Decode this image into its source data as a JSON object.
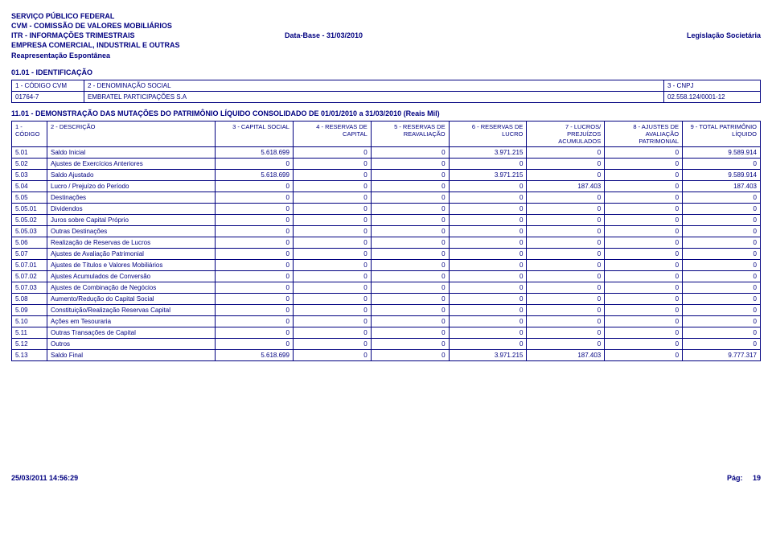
{
  "header": {
    "line1": "SERVIÇO PÚBLICO FEDERAL",
    "line2": "CVM - COMISSÃO DE VALORES MOBILIÁRIOS",
    "line3_left": "ITR - INFORMAÇÕES TRIMESTRAIS",
    "line3_mid": "Data-Base - 31/03/2010",
    "line3_right": "Legislação Societária",
    "line4": "EMPRESA COMERCIAL, INDUSTRIAL E OUTRAS",
    "line5": "Reapresentação Espontânea"
  },
  "section_ident_title": "01.01 - IDENTIFICAÇÃO",
  "ident": {
    "h1": "1 - CÓDIGO CVM",
    "h2": "2 - DENOMINAÇÃO SOCIAL",
    "h3": "3 - CNPJ",
    "v1": "01764-7",
    "v2": "EMBRATEL PARTICIPAÇÕES S.A",
    "v3": "02.558.124/0001-12"
  },
  "section_demo_title": "11.01 - DEMONSTRAÇÃO DAS MUTAÇÕES DO PATRIMÔNIO LÍQUIDO CONSOLIDADO DE 01/01/2010 a 31/03/2010 (Reais Mil)",
  "columns": {
    "c1": "1 - CÓDIGO",
    "c2": "2 - DESCRIÇÃO",
    "c3": "3 - CAPITAL SOCIAL",
    "c4": "4 - RESERVAS DE CAPITAL",
    "c5": "5 - RESERVAS DE REAVALIAÇÃO",
    "c6": "6 - RESERVAS DE LUCRO",
    "c7": "7 - LUCROS/ PREJUÍZOS ACUMULADOS",
    "c8": "8 - AJUSTES DE AVALIAÇÃO PATRIMONIAL",
    "c9": "9 - TOTAL PATRIMÔNIO LÍQUIDO"
  },
  "rows": [
    {
      "code": "5.01",
      "desc": "Saldo Inicial",
      "v": [
        "5.618.699",
        "0",
        "0",
        "3.971.215",
        "0",
        "0",
        "9.589.914"
      ]
    },
    {
      "code": "5.02",
      "desc": "Ajustes de Exercícios Anteriores",
      "v": [
        "0",
        "0",
        "0",
        "0",
        "0",
        "0",
        "0"
      ]
    },
    {
      "code": "5.03",
      "desc": "Saldo Ajustado",
      "v": [
        "5.618.699",
        "0",
        "0",
        "3.971.215",
        "0",
        "0",
        "9.589.914"
      ]
    },
    {
      "code": "5.04",
      "desc": "Lucro / Prejuízo do Período",
      "v": [
        "0",
        "0",
        "0",
        "0",
        "187.403",
        "0",
        "187.403"
      ]
    },
    {
      "code": "5.05",
      "desc": "Destinações",
      "v": [
        "0",
        "0",
        "0",
        "0",
        "0",
        "0",
        "0"
      ]
    },
    {
      "code": "5.05.01",
      "desc": "Dividendos",
      "v": [
        "0",
        "0",
        "0",
        "0",
        "0",
        "0",
        "0"
      ]
    },
    {
      "code": "5.05.02",
      "desc": "Juros sobre Capital Próprio",
      "v": [
        "0",
        "0",
        "0",
        "0",
        "0",
        "0",
        "0"
      ]
    },
    {
      "code": "5.05.03",
      "desc": "Outras Destinações",
      "v": [
        "0",
        "0",
        "0",
        "0",
        "0",
        "0",
        "0"
      ]
    },
    {
      "code": "5.06",
      "desc": "Realização de Reservas de Lucros",
      "v": [
        "0",
        "0",
        "0",
        "0",
        "0",
        "0",
        "0"
      ]
    },
    {
      "code": "5.07",
      "desc": "Ajustes de Avaliação Patrimonial",
      "v": [
        "0",
        "0",
        "0",
        "0",
        "0",
        "0",
        "0"
      ]
    },
    {
      "code": "5.07.01",
      "desc": "Ajustes de Títulos e Valores Mobiliários",
      "v": [
        "0",
        "0",
        "0",
        "0",
        "0",
        "0",
        "0"
      ]
    },
    {
      "code": "5.07.02",
      "desc": "Ajustes Acumulados de Conversão",
      "v": [
        "0",
        "0",
        "0",
        "0",
        "0",
        "0",
        "0"
      ]
    },
    {
      "code": "5.07.03",
      "desc": "Ajustes de Combinação de Negócios",
      "v": [
        "0",
        "0",
        "0",
        "0",
        "0",
        "0",
        "0"
      ]
    },
    {
      "code": "5.08",
      "desc": "Aumento/Redução do Capital Social",
      "v": [
        "0",
        "0",
        "0",
        "0",
        "0",
        "0",
        "0"
      ]
    },
    {
      "code": "5.09",
      "desc": "Constituição/Realização Reservas Capital",
      "v": [
        "0",
        "0",
        "0",
        "0",
        "0",
        "0",
        "0"
      ]
    },
    {
      "code": "5.10",
      "desc": "Ações em Tesouraria",
      "v": [
        "0",
        "0",
        "0",
        "0",
        "0",
        "0",
        "0"
      ]
    },
    {
      "code": "5.11",
      "desc": "Outras Transações de Capital",
      "v": [
        "0",
        "0",
        "0",
        "0",
        "0",
        "0",
        "0"
      ]
    },
    {
      "code": "5.12",
      "desc": "Outros",
      "v": [
        "0",
        "0",
        "0",
        "0",
        "0",
        "0",
        "0"
      ]
    },
    {
      "code": "5.13",
      "desc": "Saldo Final",
      "v": [
        "5.618.699",
        "0",
        "0",
        "3.971.215",
        "187.403",
        "0",
        "9.777.317"
      ]
    }
  ],
  "footer": {
    "timestamp": "25/03/2011 14:56:29",
    "page_label": "Pág:",
    "page_num": "19"
  }
}
